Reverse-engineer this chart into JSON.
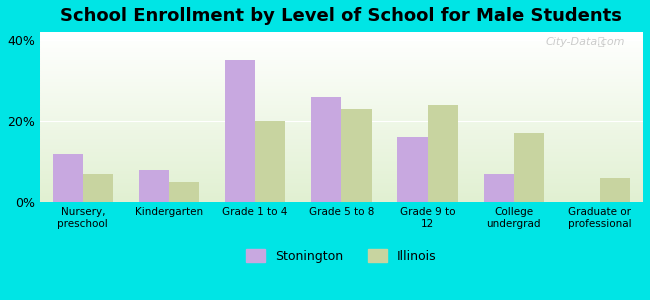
{
  "title": "School Enrollment by Level of School for Male Students",
  "categories": [
    "Nursery,\npreschool",
    "Kindergarten",
    "Grade 1 to 4",
    "Grade 5 to 8",
    "Grade 9 to\n12",
    "College\nundergrad",
    "Graduate or\nprofessional"
  ],
  "stonington": [
    12,
    8,
    35,
    26,
    16,
    7,
    0
  ],
  "illinois": [
    7,
    5,
    20,
    23,
    24,
    17,
    6
  ],
  "stonington_color": "#c8a8e0",
  "illinois_color": "#c8d4a0",
  "background_color": "#00e5e5",
  "plot_bg_start": "#e8f5e0",
  "plot_bg_end": "#ffffff",
  "ylim": [
    0,
    42
  ],
  "yticks": [
    0,
    20,
    40
  ],
  "ytick_labels": [
    "0%",
    "20%",
    "40%"
  ],
  "bar_width": 0.35,
  "title_fontsize": 13,
  "legend_labels": [
    "Stonington",
    "Illinois"
  ],
  "watermark": "City-Data.com"
}
